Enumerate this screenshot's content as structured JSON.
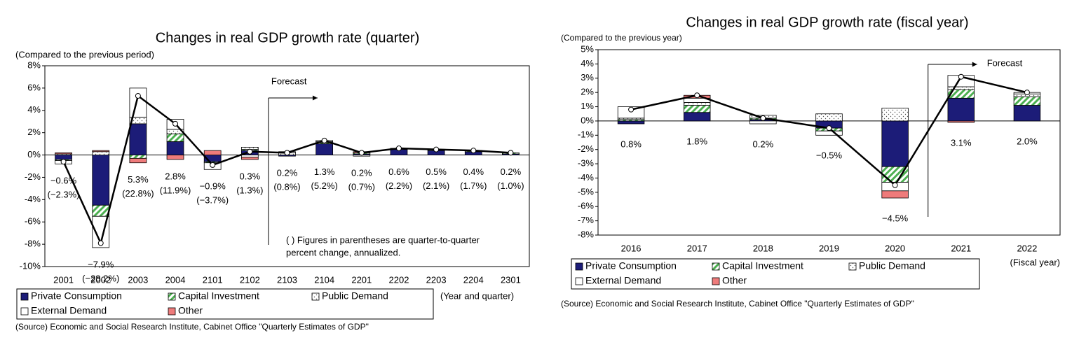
{
  "chart_data": [
    {
      "type": "bar",
      "stacked": true,
      "title": "Changes in real GDP growth rate (quarter)",
      "y_label": "(Compared to the previous period)",
      "x_label": "(Year and quarter)",
      "categories": [
        "2001",
        "2002",
        "2003",
        "2004",
        "2101",
        "2102",
        "2103",
        "2104",
        "2201",
        "2202",
        "2203",
        "2204",
        "2301"
      ],
      "series": [
        {
          "name": "Private Consumption",
          "color": "#1c1c78",
          "values": [
            -0.4,
            -4.5,
            2.8,
            1.2,
            -0.6,
            0.4,
            -0.1,
            1.0,
            0.1,
            0.5,
            0.4,
            0.3,
            0.1
          ]
        },
        {
          "name": "Capital Investment",
          "color": "#4caf50",
          "pattern": "hatch",
          "values": [
            -0.1,
            -1.0,
            -0.3,
            0.7,
            -0.1,
            0.1,
            0.0,
            0.1,
            0.1,
            0.1,
            0.1,
            0.1,
            0.1
          ]
        },
        {
          "name": "Public Demand",
          "color": "#555555",
          "pattern": "dots",
          "values": [
            0.1,
            0.3,
            0.6,
            0.4,
            0.0,
            0.2,
            0.2,
            0.1,
            0.0,
            0.0,
            0.0,
            0.0,
            0.0
          ]
        },
        {
          "name": "External Demand",
          "color": "#ffffff",
          "values": [
            -0.3,
            -2.8,
            2.6,
            0.9,
            -0.6,
            -0.2,
            0.1,
            0.1,
            -0.1,
            0.0,
            0.0,
            0.0,
            0.0
          ]
        },
        {
          "name": "Other",
          "color": "#ee7b7b",
          "values": [
            0.1,
            0.1,
            -0.4,
            -0.4,
            0.4,
            -0.2,
            0.0,
            0.0,
            0.1,
            0.0,
            0.0,
            0.0,
            0.0
          ]
        }
      ],
      "line": {
        "color": "#000000",
        "values": [
          -0.6,
          -7.9,
          5.3,
          2.8,
          -0.9,
          0.3,
          0.2,
          1.3,
          0.2,
          0.6,
          0.5,
          0.4,
          0.2
        ],
        "value_labels": [
          "−0.6%",
          "−7.9%",
          "5.3%",
          "2.8%",
          "−0.9%",
          "0.3%",
          "0.2%",
          "1.3%",
          "0.2%",
          "0.6%",
          "0.5%",
          "0.4%",
          "0.2%"
        ],
        "annualized_labels": [
          "(−2.3%)",
          "(−28.2%)",
          "(22.8%)",
          "(11.9%)",
          "(−3.7%)",
          "(1.3%)",
          "(0.8%)",
          "(5.2%)",
          "(0.7%)",
          "(2.2%)",
          "(2.1%)",
          "(1.7%)",
          "(1.0%)"
        ]
      },
      "ylim": [
        -10,
        8
      ],
      "yticks": [
        {
          "value": -10,
          "label": "-10%"
        },
        {
          "value": -8,
          "label": "-8%"
        },
        {
          "value": -6,
          "label": "-6%"
        },
        {
          "value": -4,
          "label": "-4%"
        },
        {
          "value": -2,
          "label": "-2%"
        },
        {
          "value": 0,
          "label": "0%"
        },
        {
          "value": 2,
          "label": "2%"
        },
        {
          "value": 4,
          "label": "4%"
        },
        {
          "value": 6,
          "label": "6%"
        },
        {
          "value": 8,
          "label": "8%"
        }
      ],
      "forecast": {
        "label": "Forecast",
        "start": "2103"
      },
      "note": [
        "( ) Figures in parentheses are quarter-to-quarter",
        "percent change, annualized."
      ],
      "source": "(Source) Economic and Social Research Institute, Cabinet Office \"Quarterly Estimates of GDP\""
    },
    {
      "type": "bar",
      "stacked": true,
      "title": "Changes in real GDP growth rate (fiscal year)",
      "y_label": "(Compared to the previous year)",
      "x_label": "(Fiscal year)",
      "categories": [
        "2016",
        "2017",
        "2018",
        "2019",
        "2020",
        "2021",
        "2022"
      ],
      "series": [
        {
          "name": "Private Consumption",
          "color": "#1c1c78",
          "values": [
            -0.2,
            0.6,
            0.1,
            -0.5,
            -3.2,
            1.6,
            1.1
          ]
        },
        {
          "name": "Capital Investment",
          "color": "#4caf50",
          "pattern": "hatch",
          "values": [
            0.1,
            0.5,
            0.1,
            -0.2,
            -1.1,
            0.6,
            0.6
          ]
        },
        {
          "name": "Public Demand",
          "color": "#555555",
          "pattern": "dots",
          "values": [
            0.1,
            0.2,
            0.2,
            0.5,
            0.9,
            0.2,
            0.2
          ]
        },
        {
          "name": "External Demand",
          "color": "#ffffff",
          "values": [
            0.8,
            0.3,
            -0.2,
            -0.3,
            -0.6,
            0.8,
            0.1
          ]
        },
        {
          "name": "Other",
          "color": "#ee7b7b",
          "values": [
            0.0,
            0.2,
            0.0,
            0.0,
            -0.5,
            -0.1,
            0.0
          ]
        }
      ],
      "line": {
        "color": "#000000",
        "values": [
          0.8,
          1.8,
          0.2,
          -0.5,
          -4.5,
          3.1,
          2.0
        ],
        "value_labels": [
          "0.8%",
          "1.8%",
          "0.2%",
          "−0.5%",
          "−4.5%",
          "3.1%",
          "2.0%"
        ]
      },
      "ylim": [
        -8,
        5
      ],
      "yticks": [
        {
          "value": -8,
          "label": "-8%"
        },
        {
          "value": -7,
          "label": "-7%"
        },
        {
          "value": -6,
          "label": "-6%"
        },
        {
          "value": -5,
          "label": "-5%"
        },
        {
          "value": -4,
          "label": "-4%"
        },
        {
          "value": -3,
          "label": "-3%"
        },
        {
          "value": -2,
          "label": "-2%"
        },
        {
          "value": -1,
          "label": "-1%"
        },
        {
          "value": 0,
          "label": "0%"
        },
        {
          "value": 1,
          "label": "1%"
        },
        {
          "value": 2,
          "label": "2%"
        },
        {
          "value": 3,
          "label": "3%"
        },
        {
          "value": 4,
          "label": "4%"
        },
        {
          "value": 5,
          "label": "5%"
        }
      ],
      "forecast": {
        "label": "Forecast",
        "start": "2021"
      },
      "source": "(Source) Economic and Social Research Institute,  Cabinet Office \"Quarterly Estimates of GDP\""
    }
  ]
}
